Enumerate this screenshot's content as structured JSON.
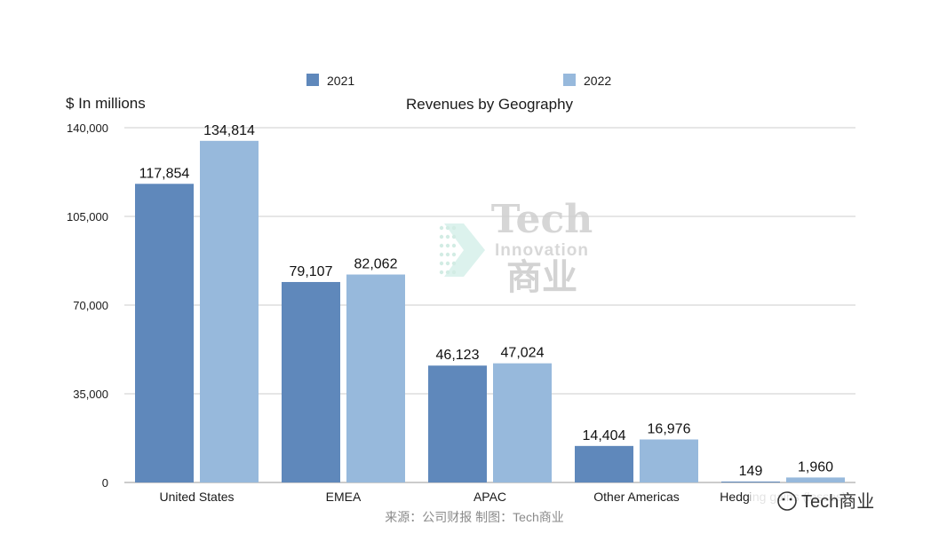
{
  "chart_data": {
    "type": "bar",
    "title": "Revenues by Geography",
    "ylabel": "$ In millions",
    "xlabel": "",
    "ylim": [
      0,
      140000
    ],
    "yticks": [
      0,
      35000,
      70000,
      105000,
      140000
    ],
    "ytick_labels": [
      "0",
      "35,000",
      "70,000",
      "105,000",
      "140,000"
    ],
    "grid": true,
    "legend_position": "top",
    "categories": [
      "United States",
      "EMEA",
      "APAC",
      "Other Americas",
      "Hedging gains (losses)"
    ],
    "series": [
      {
        "name": "2021",
        "color": "#5f88bb",
        "values": [
          117854,
          79107,
          46123,
          14404,
          149
        ],
        "labels": [
          "117,854",
          "79,107",
          "46,123",
          "14,404",
          "149"
        ]
      },
      {
        "name": "2022",
        "color": "#97b9dc",
        "values": [
          134814,
          82062,
          47024,
          16976,
          1960
        ],
        "labels": [
          "134,814",
          "82,062",
          "47,024",
          "16,976",
          "1,960"
        ]
      }
    ]
  },
  "source_note": "来源：公司财报 制图：Tech商业",
  "brand_badge": "Tech商业",
  "watermark": {
    "line1": "Tech",
    "line2": "Innovation",
    "line3": "商业"
  },
  "colors": {
    "grid": "#cccccc",
    "text": "#1a1a1a",
    "source": "#8a8a8a"
  }
}
